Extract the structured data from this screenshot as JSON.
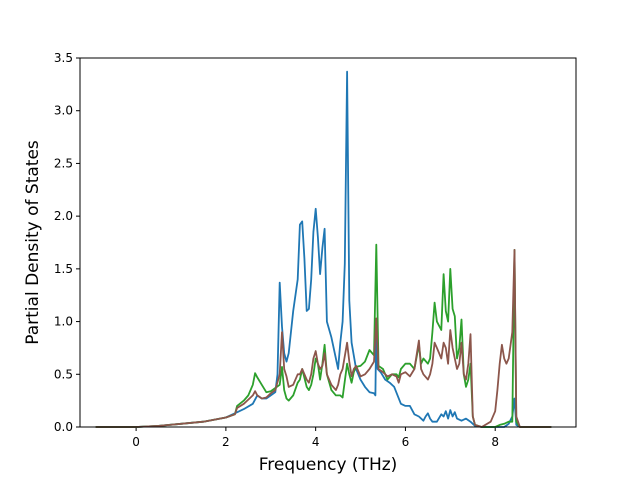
{
  "chart_data": {
    "type": "line",
    "title": "",
    "xlabel": "Frequency (THz)",
    "ylabel": "Partial Density of States",
    "xlim": [
      -1.25,
      9.8
    ],
    "ylim": [
      0,
      3.5
    ],
    "x_ticks": [
      0,
      2,
      4,
      6,
      8
    ],
    "y_ticks": [
      0.0,
      0.5,
      1.0,
      1.5,
      2.0,
      2.5,
      3.0,
      3.5
    ],
    "x_tick_labels": [
      "0",
      "2",
      "4",
      "6",
      "8"
    ],
    "y_tick_labels": [
      "0.0",
      "0.5",
      "1.0",
      "1.5",
      "2.0",
      "2.5",
      "3.0",
      "3.5"
    ],
    "grid": false,
    "legend": "none",
    "series": [
      {
        "color": "#1f77b4",
        "points": [
          [
            -0.9,
            0
          ],
          [
            0,
            0
          ],
          [
            0.5,
            0.01
          ],
          [
            1.0,
            0.03
          ],
          [
            1.5,
            0.05
          ],
          [
            2.0,
            0.09
          ],
          [
            2.2,
            0.13
          ],
          [
            2.4,
            0.17
          ],
          [
            2.6,
            0.22
          ],
          [
            2.7,
            0.3
          ],
          [
            2.8,
            0.27
          ],
          [
            2.9,
            0.27
          ],
          [
            3.0,
            0.3
          ],
          [
            3.1,
            0.33
          ],
          [
            3.15,
            0.5
          ],
          [
            3.2,
            1.37
          ],
          [
            3.25,
            0.95
          ],
          [
            3.3,
            0.7
          ],
          [
            3.35,
            0.62
          ],
          [
            3.4,
            0.7
          ],
          [
            3.5,
            1.1
          ],
          [
            3.6,
            1.4
          ],
          [
            3.65,
            1.92
          ],
          [
            3.7,
            1.95
          ],
          [
            3.75,
            1.6
          ],
          [
            3.8,
            1.1
          ],
          [
            3.85,
            1.12
          ],
          [
            3.9,
            1.4
          ],
          [
            3.95,
            1.85
          ],
          [
            4.0,
            2.07
          ],
          [
            4.05,
            1.8
          ],
          [
            4.1,
            1.45
          ],
          [
            4.15,
            1.7
          ],
          [
            4.2,
            1.88
          ],
          [
            4.25,
            1.0
          ],
          [
            4.35,
            0.85
          ],
          [
            4.45,
            0.65
          ],
          [
            4.5,
            0.55
          ],
          [
            4.55,
            0.8
          ],
          [
            4.6,
            1.0
          ],
          [
            4.65,
            1.55
          ],
          [
            4.7,
            3.37
          ],
          [
            4.75,
            1.2
          ],
          [
            4.8,
            0.8
          ],
          [
            4.9,
            0.55
          ],
          [
            5.0,
            0.45
          ],
          [
            5.1,
            0.38
          ],
          [
            5.2,
            0.33
          ],
          [
            5.3,
            0.32
          ],
          [
            5.33,
            0.3
          ],
          [
            5.35,
            1.0
          ],
          [
            5.38,
            0.55
          ],
          [
            5.45,
            0.52
          ],
          [
            5.55,
            0.45
          ],
          [
            5.65,
            0.42
          ],
          [
            5.75,
            0.38
          ],
          [
            5.9,
            0.22
          ],
          [
            6.0,
            0.2
          ],
          [
            6.1,
            0.2
          ],
          [
            6.2,
            0.12
          ],
          [
            6.3,
            0.1
          ],
          [
            6.4,
            0.06
          ],
          [
            6.45,
            0.1
          ],
          [
            6.5,
            0.13
          ],
          [
            6.55,
            0.08
          ],
          [
            6.6,
            0.05
          ],
          [
            6.7,
            0.05
          ],
          [
            6.8,
            0.12
          ],
          [
            6.85,
            0.1
          ],
          [
            6.9,
            0.15
          ],
          [
            6.95,
            0.08
          ],
          [
            7.0,
            0.16
          ],
          [
            7.05,
            0.1
          ],
          [
            7.1,
            0.14
          ],
          [
            7.15,
            0.08
          ],
          [
            7.25,
            0.06
          ],
          [
            7.35,
            0.08
          ],
          [
            7.45,
            0.05
          ],
          [
            7.55,
            0.01
          ],
          [
            7.7,
            0
          ],
          [
            8.2,
            0
          ],
          [
            8.3,
            0.03
          ],
          [
            8.38,
            0.1
          ],
          [
            8.43,
            0.27
          ],
          [
            8.47,
            0.02
          ],
          [
            8.55,
            0
          ],
          [
            9.25,
            0
          ]
        ]
      },
      {
        "color": "#2ca02c",
        "points": [
          [
            -0.9,
            0
          ],
          [
            0,
            0
          ],
          [
            0.5,
            0.01
          ],
          [
            1.0,
            0.03
          ],
          [
            1.5,
            0.05
          ],
          [
            2.0,
            0.09
          ],
          [
            2.2,
            0.12
          ],
          [
            2.25,
            0.2
          ],
          [
            2.4,
            0.25
          ],
          [
            2.5,
            0.3
          ],
          [
            2.6,
            0.4
          ],
          [
            2.65,
            0.51
          ],
          [
            2.7,
            0.47
          ],
          [
            2.8,
            0.4
          ],
          [
            2.9,
            0.33
          ],
          [
            3.0,
            0.34
          ],
          [
            3.1,
            0.37
          ],
          [
            3.2,
            0.4
          ],
          [
            3.25,
            0.57
          ],
          [
            3.3,
            0.35
          ],
          [
            3.35,
            0.27
          ],
          [
            3.4,
            0.25
          ],
          [
            3.5,
            0.3
          ],
          [
            3.6,
            0.42
          ],
          [
            3.65,
            0.45
          ],
          [
            3.7,
            0.55
          ],
          [
            3.8,
            0.38
          ],
          [
            3.85,
            0.35
          ],
          [
            3.9,
            0.4
          ],
          [
            3.95,
            0.5
          ],
          [
            4.0,
            0.65
          ],
          [
            4.05,
            0.6
          ],
          [
            4.1,
            0.45
          ],
          [
            4.15,
            0.6
          ],
          [
            4.2,
            0.78
          ],
          [
            4.25,
            0.5
          ],
          [
            4.35,
            0.35
          ],
          [
            4.45,
            0.3
          ],
          [
            4.55,
            0.3
          ],
          [
            4.6,
            0.28
          ],
          [
            4.7,
            0.6
          ],
          [
            4.75,
            0.5
          ],
          [
            4.8,
            0.42
          ],
          [
            4.85,
            0.52
          ],
          [
            4.9,
            0.57
          ],
          [
            5.0,
            0.58
          ],
          [
            5.1,
            0.62
          ],
          [
            5.2,
            0.73
          ],
          [
            5.3,
            0.68
          ],
          [
            5.35,
            1.73
          ],
          [
            5.4,
            0.58
          ],
          [
            5.5,
            0.55
          ],
          [
            5.6,
            0.45
          ],
          [
            5.7,
            0.5
          ],
          [
            5.8,
            0.5
          ],
          [
            5.85,
            0.47
          ],
          [
            5.9,
            0.55
          ],
          [
            6.0,
            0.6
          ],
          [
            6.1,
            0.6
          ],
          [
            6.2,
            0.55
          ],
          [
            6.3,
            0.78
          ],
          [
            6.35,
            0.6
          ],
          [
            6.4,
            0.65
          ],
          [
            6.5,
            0.6
          ],
          [
            6.55,
            0.65
          ],
          [
            6.6,
            0.9
          ],
          [
            6.65,
            1.18
          ],
          [
            6.7,
            1.0
          ],
          [
            6.8,
            0.92
          ],
          [
            6.85,
            1.45
          ],
          [
            6.9,
            1.1
          ],
          [
            6.95,
            1.0
          ],
          [
            7.0,
            1.5
          ],
          [
            7.05,
            1.12
          ],
          [
            7.1,
            1.05
          ],
          [
            7.15,
            0.65
          ],
          [
            7.2,
            0.75
          ],
          [
            7.25,
            1.02
          ],
          [
            7.3,
            0.5
          ],
          [
            7.35,
            0.38
          ],
          [
            7.4,
            0.45
          ],
          [
            7.45,
            0.6
          ],
          [
            7.5,
            0.1
          ],
          [
            7.55,
            0.02
          ],
          [
            7.7,
            0
          ],
          [
            8.0,
            0
          ],
          [
            8.1,
            0.02
          ],
          [
            8.2,
            0.03
          ],
          [
            8.3,
            0.05
          ],
          [
            8.38,
            0.05
          ],
          [
            8.43,
            1.68
          ],
          [
            8.47,
            0.05
          ],
          [
            8.55,
            0
          ],
          [
            9.25,
            0
          ]
        ]
      },
      {
        "color": "#8c564b",
        "points": [
          [
            -0.9,
            0
          ],
          [
            0,
            0
          ],
          [
            0.5,
            0.01
          ],
          [
            1.0,
            0.03
          ],
          [
            1.5,
            0.05
          ],
          [
            2.0,
            0.09
          ],
          [
            2.2,
            0.12
          ],
          [
            2.25,
            0.18
          ],
          [
            2.4,
            0.22
          ],
          [
            2.5,
            0.26
          ],
          [
            2.6,
            0.3
          ],
          [
            2.65,
            0.34
          ],
          [
            2.7,
            0.3
          ],
          [
            2.8,
            0.27
          ],
          [
            2.9,
            0.28
          ],
          [
            3.0,
            0.32
          ],
          [
            3.1,
            0.35
          ],
          [
            3.2,
            0.5
          ],
          [
            3.25,
            0.9
          ],
          [
            3.3,
            0.55
          ],
          [
            3.35,
            0.48
          ],
          [
            3.4,
            0.38
          ],
          [
            3.5,
            0.4
          ],
          [
            3.6,
            0.5
          ],
          [
            3.65,
            0.5
          ],
          [
            3.7,
            0.55
          ],
          [
            3.8,
            0.45
          ],
          [
            3.85,
            0.42
          ],
          [
            3.9,
            0.5
          ],
          [
            3.95,
            0.65
          ],
          [
            4.0,
            0.72
          ],
          [
            4.05,
            0.6
          ],
          [
            4.1,
            0.55
          ],
          [
            4.15,
            0.58
          ],
          [
            4.2,
            0.7
          ],
          [
            4.25,
            0.5
          ],
          [
            4.35,
            0.4
          ],
          [
            4.45,
            0.35
          ],
          [
            4.5,
            0.4
          ],
          [
            4.55,
            0.5
          ],
          [
            4.6,
            0.55
          ],
          [
            4.7,
            0.8
          ],
          [
            4.75,
            0.62
          ],
          [
            4.8,
            0.48
          ],
          [
            4.85,
            0.55
          ],
          [
            4.9,
            0.58
          ],
          [
            5.0,
            0.48
          ],
          [
            5.1,
            0.5
          ],
          [
            5.2,
            0.55
          ],
          [
            5.3,
            0.62
          ],
          [
            5.35,
            1.03
          ],
          [
            5.4,
            0.55
          ],
          [
            5.5,
            0.52
          ],
          [
            5.6,
            0.48
          ],
          [
            5.7,
            0.5
          ],
          [
            5.8,
            0.48
          ],
          [
            5.85,
            0.42
          ],
          [
            5.9,
            0.5
          ],
          [
            6.0,
            0.52
          ],
          [
            6.1,
            0.48
          ],
          [
            6.2,
            0.55
          ],
          [
            6.3,
            0.82
          ],
          [
            6.35,
            0.55
          ],
          [
            6.4,
            0.5
          ],
          [
            6.5,
            0.45
          ],
          [
            6.55,
            0.5
          ],
          [
            6.6,
            0.6
          ],
          [
            6.65,
            0.8
          ],
          [
            6.7,
            0.75
          ],
          [
            6.8,
            0.65
          ],
          [
            6.85,
            0.8
          ],
          [
            6.9,
            0.75
          ],
          [
            6.95,
            0.6
          ],
          [
            7.0,
            0.92
          ],
          [
            7.05,
            0.75
          ],
          [
            7.1,
            0.65
          ],
          [
            7.15,
            0.55
          ],
          [
            7.2,
            0.6
          ],
          [
            7.25,
            0.8
          ],
          [
            7.3,
            0.5
          ],
          [
            7.35,
            0.45
          ],
          [
            7.4,
            0.6
          ],
          [
            7.45,
            0.88
          ],
          [
            7.5,
            0.1
          ],
          [
            7.55,
            0.02
          ],
          [
            7.7,
            0
          ],
          [
            7.9,
            0.05
          ],
          [
            8.0,
            0.15
          ],
          [
            8.05,
            0.35
          ],
          [
            8.1,
            0.6
          ],
          [
            8.15,
            0.78
          ],
          [
            8.2,
            0.65
          ],
          [
            8.25,
            0.6
          ],
          [
            8.3,
            0.65
          ],
          [
            8.38,
            0.9
          ],
          [
            8.43,
            1.68
          ],
          [
            8.47,
            0.1
          ],
          [
            8.55,
            0
          ],
          [
            9.25,
            0
          ]
        ]
      }
    ]
  }
}
